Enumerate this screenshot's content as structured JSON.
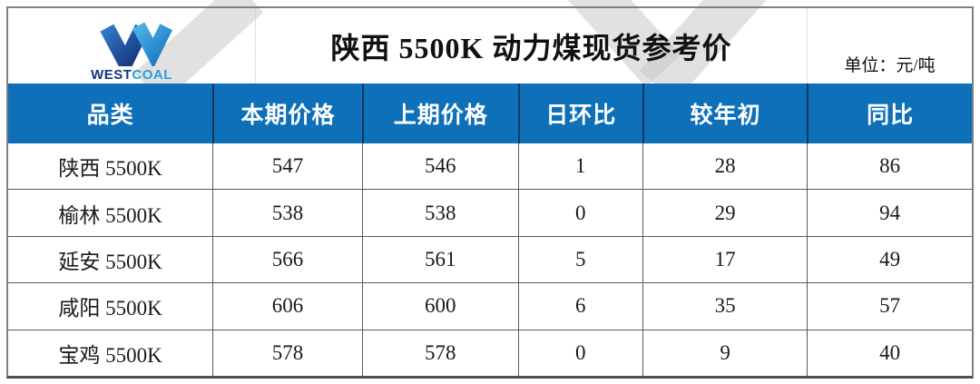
{
  "header": {
    "logo": {
      "west": "WEST",
      "coal": "COAL"
    },
    "title": "陕西 5500K 动力煤现货参考价",
    "unit_label": "单位：元/吨"
  },
  "table": {
    "columns": [
      "品类",
      "本期价格",
      "上期价格",
      "日环比",
      "较年初",
      "同比"
    ],
    "rows": [
      {
        "category": "陕西 5500K",
        "values": [
          547,
          546,
          1,
          28,
          86
        ]
      },
      {
        "category": "榆林 5500K",
        "values": [
          538,
          538,
          0,
          29,
          94
        ]
      },
      {
        "category": "延安 5500K",
        "values": [
          566,
          561,
          5,
          17,
          49
        ]
      },
      {
        "category": "咸阳 5500K",
        "values": [
          606,
          600,
          6,
          35,
          57
        ]
      },
      {
        "category": "宝鸡 5500K",
        "values": [
          578,
          578,
          0,
          9,
          40
        ]
      }
    ]
  },
  "colors": {
    "header_blue": "#0E70B8",
    "header_divider_navy": "#17365C",
    "outer_border_gray": "#808080",
    "row_border_gray": "#595959",
    "logo_dark_blue": "#16357F",
    "logo_light_blue": "#2A9FD8"
  },
  "chart_data": {
    "type": "table",
    "title": "陕西 5500K 动力煤现货参考价",
    "unit": "元/吨",
    "columns": [
      "品类",
      "本期价格",
      "上期价格",
      "日环比",
      "较年初",
      "同比"
    ],
    "rows": [
      [
        "陕西 5500K",
        547,
        546,
        1,
        28,
        86
      ],
      [
        "榆林 5500K",
        538,
        538,
        0,
        29,
        94
      ],
      [
        "延安 5500K",
        566,
        561,
        5,
        17,
        49
      ],
      [
        "咸阳 5500K",
        606,
        600,
        6,
        35,
        57
      ],
      [
        "宝鸡 5500K",
        578,
        578,
        0,
        9,
        40
      ]
    ]
  }
}
